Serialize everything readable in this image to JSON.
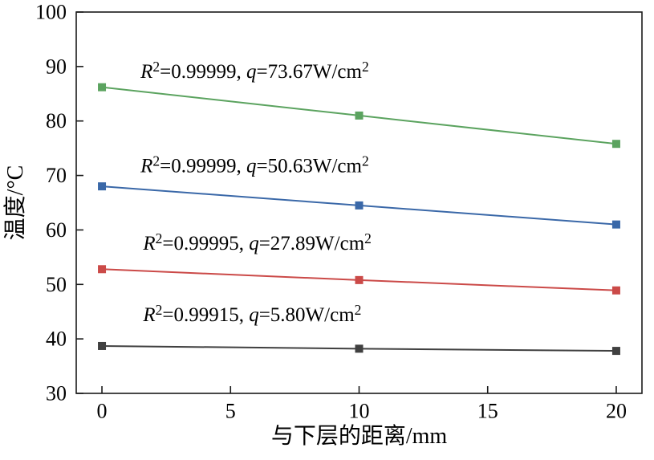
{
  "chart_data": {
    "type": "line",
    "title": "",
    "xlabel": "与下层的距离/mm",
    "ylabel": "温度/°C",
    "xlim": [
      -1,
      21
    ],
    "ylim": [
      30,
      100
    ],
    "xticks": [
      0,
      5,
      10,
      15,
      20
    ],
    "yticks": [
      30,
      40,
      50,
      60,
      70,
      80,
      90,
      100
    ],
    "grid": false,
    "legend_position": "none",
    "x": [
      0,
      10,
      20
    ],
    "series": [
      {
        "name": "q=73.67 W/cm2",
        "color": "#5ba35f",
        "values": [
          86.2,
          81.0,
          75.8
        ],
        "annotation_pos": {
          "x": 1.5,
          "y": 87.9
        },
        "annotation": [
          {
            "t": "R",
            "italic": true
          },
          {
            "t": "2",
            "sup": true
          },
          {
            "t": "=0.99999, "
          },
          {
            "t": "q",
            "italic": true
          },
          {
            "t": "=73.67W/cm"
          },
          {
            "t": "2",
            "sup": true
          }
        ]
      },
      {
        "name": "q=50.63 W/cm2",
        "color": "#3a68a8",
        "values": [
          68.0,
          64.5,
          61.0
        ],
        "annotation_pos": {
          "x": 1.5,
          "y": 70.6
        },
        "annotation": [
          {
            "t": "R",
            "italic": true
          },
          {
            "t": "2",
            "sup": true
          },
          {
            "t": "=0.99999, "
          },
          {
            "t": "q",
            "italic": true
          },
          {
            "t": "=50.63W/cm"
          },
          {
            "t": "2",
            "sup": true
          }
        ]
      },
      {
        "name": "q=27.89 W/cm2",
        "color": "#cb4a48",
        "values": [
          52.8,
          50.8,
          48.9
        ],
        "annotation_pos": {
          "x": 1.6,
          "y": 56.4
        },
        "annotation": [
          {
            "t": "R",
            "italic": true
          },
          {
            "t": "2",
            "sup": true
          },
          {
            "t": "=0.99995, "
          },
          {
            "t": "q",
            "italic": true
          },
          {
            "t": "=27.89W/cm"
          },
          {
            "t": "2",
            "sup": true
          }
        ]
      },
      {
        "name": "q=5.80 W/cm2",
        "color": "#404040",
        "values": [
          38.7,
          38.2,
          37.8
        ],
        "annotation_pos": {
          "x": 1.6,
          "y": 43.3
        },
        "annotation": [
          {
            "t": "R",
            "italic": true
          },
          {
            "t": "2",
            "sup": true
          },
          {
            "t": "=0.99915, "
          },
          {
            "t": "q",
            "italic": true
          },
          {
            "t": "=5.80W/cm"
          },
          {
            "t": "2",
            "sup": true
          }
        ]
      }
    ],
    "axis_color": "#1a1a1a",
    "background": "#ffffff"
  }
}
